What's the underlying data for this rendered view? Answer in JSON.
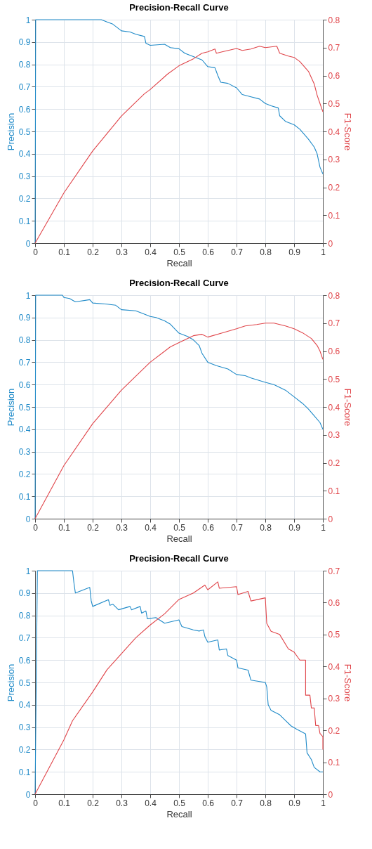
{
  "chart_data": [
    {
      "type": "line",
      "title": "Precision-Recall Curve",
      "xlabel": "Recall",
      "ylabel": "Precision",
      "y2label": "F1-Score",
      "grid": true,
      "xlim": [
        0,
        1
      ],
      "xticks": [
        0,
        0.1,
        0.2,
        0.3,
        0.4,
        0.5,
        0.6,
        0.7,
        0.8,
        0.9,
        1
      ],
      "ylim": [
        0,
        1
      ],
      "yticks": [
        0,
        0.1,
        0.2,
        0.3,
        0.4,
        0.5,
        0.6,
        0.7,
        0.8,
        0.9,
        1
      ],
      "y2lim": [
        0,
        0.8
      ],
      "y2ticks": [
        0,
        0.1,
        0.2,
        0.3,
        0.4,
        0.5,
        0.6,
        0.7,
        0.8
      ],
      "series": [
        {
          "color": "#1f8ac8",
          "axis": "y",
          "x": [
            0,
            0.002,
            0.23,
            0.25,
            0.27,
            0.3,
            0.33,
            0.35,
            0.38,
            0.385,
            0.4,
            0.45,
            0.47,
            0.5,
            0.52,
            0.55,
            0.58,
            0.6,
            0.625,
            0.635,
            0.645,
            0.67,
            0.7,
            0.72,
            0.75,
            0.78,
            0.8,
            0.82,
            0.845,
            0.85,
            0.87,
            0.9,
            0.92,
            0.95,
            0.97,
            0.98,
            0.99,
            1
          ],
          "values": [
            0,
            1,
            1,
            0.99,
            0.98,
            0.95,
            0.945,
            0.935,
            0.925,
            0.895,
            0.885,
            0.89,
            0.875,
            0.87,
            0.85,
            0.835,
            0.82,
            0.79,
            0.785,
            0.75,
            0.72,
            0.715,
            0.695,
            0.665,
            0.655,
            0.645,
            0.625,
            0.615,
            0.605,
            0.57,
            0.545,
            0.53,
            0.51,
            0.465,
            0.43,
            0.4,
            0.34,
            0.31
          ]
        },
        {
          "color": "#e0454a",
          "axis": "y2",
          "x": [
            0,
            0.1,
            0.2,
            0.3,
            0.38,
            0.4,
            0.46,
            0.5,
            0.55,
            0.58,
            0.6,
            0.625,
            0.63,
            0.65,
            0.7,
            0.72,
            0.75,
            0.78,
            0.8,
            0.84,
            0.85,
            0.88,
            0.9,
            0.92,
            0.95,
            0.97,
            0.98,
            0.99,
            1
          ],
          "values": [
            0,
            0.18,
            0.33,
            0.455,
            0.535,
            0.55,
            0.605,
            0.635,
            0.66,
            0.68,
            0.685,
            0.695,
            0.68,
            0.685,
            0.697,
            0.69,
            0.695,
            0.705,
            0.7,
            0.705,
            0.68,
            0.67,
            0.665,
            0.65,
            0.615,
            0.57,
            0.53,
            0.5,
            0.47
          ]
        }
      ]
    },
    {
      "type": "line",
      "title": "Precision-Recall Curve",
      "xlabel": "Recall",
      "ylabel": "Precision",
      "y2label": "F1-Score",
      "grid": true,
      "xlim": [
        0,
        1
      ],
      "xticks": [
        0,
        0.1,
        0.2,
        0.3,
        0.4,
        0.5,
        0.6,
        0.7,
        0.8,
        0.9,
        1
      ],
      "ylim": [
        0,
        1
      ],
      "yticks": [
        0,
        0.1,
        0.2,
        0.3,
        0.4,
        0.5,
        0.6,
        0.7,
        0.8,
        0.9,
        1
      ],
      "y2lim": [
        0,
        0.8
      ],
      "y2ticks": [
        0,
        0.1,
        0.2,
        0.3,
        0.4,
        0.5,
        0.6,
        0.7,
        0.8
      ],
      "series": [
        {
          "color": "#1f8ac8",
          "axis": "y",
          "x": [
            0,
            0.002,
            0.095,
            0.1,
            0.12,
            0.14,
            0.19,
            0.2,
            0.25,
            0.28,
            0.3,
            0.35,
            0.38,
            0.4,
            0.42,
            0.45,
            0.47,
            0.5,
            0.53,
            0.55,
            0.57,
            0.58,
            0.6,
            0.63,
            0.67,
            0.7,
            0.73,
            0.75,
            0.8,
            0.83,
            0.87,
            0.9,
            0.93,
            0.95,
            0.97,
            0.99,
            1
          ],
          "values": [
            0,
            1,
            1,
            0.99,
            0.985,
            0.97,
            0.98,
            0.965,
            0.96,
            0.955,
            0.935,
            0.93,
            0.915,
            0.905,
            0.9,
            0.885,
            0.87,
            0.83,
            0.815,
            0.8,
            0.775,
            0.74,
            0.7,
            0.685,
            0.67,
            0.645,
            0.64,
            0.63,
            0.61,
            0.6,
            0.575,
            0.545,
            0.515,
            0.49,
            0.46,
            0.43,
            0.4
          ]
        },
        {
          "color": "#e0454a",
          "axis": "y2",
          "x": [
            0,
            0.1,
            0.2,
            0.3,
            0.4,
            0.47,
            0.5,
            0.55,
            0.58,
            0.6,
            0.65,
            0.7,
            0.73,
            0.77,
            0.8,
            0.83,
            0.85,
            0.87,
            0.9,
            0.93,
            0.96,
            0.98,
            0.99,
            1
          ],
          "values": [
            0,
            0.19,
            0.34,
            0.46,
            0.56,
            0.615,
            0.63,
            0.655,
            0.66,
            0.65,
            0.665,
            0.68,
            0.69,
            0.695,
            0.7,
            0.7,
            0.695,
            0.69,
            0.68,
            0.665,
            0.645,
            0.62,
            0.6,
            0.57
          ]
        }
      ]
    },
    {
      "type": "line",
      "title": "Precision-Recall Curve",
      "xlabel": "Recall",
      "ylabel": "Precision",
      "y2label": "F1-Score",
      "grid": true,
      "xlim": [
        0,
        1
      ],
      "xticks": [
        0,
        0.1,
        0.2,
        0.3,
        0.4,
        0.5,
        0.6,
        0.7,
        0.8,
        0.9,
        1
      ],
      "ylim": [
        0,
        1
      ],
      "yticks": [
        0,
        0.1,
        0.2,
        0.3,
        0.4,
        0.5,
        0.6,
        0.7,
        0.8,
        0.9,
        1
      ],
      "y2lim": [
        0,
        0.7
      ],
      "y2ticks": [
        0,
        0.1,
        0.2,
        0.3,
        0.4,
        0.5,
        0.6,
        0.7
      ],
      "series": [
        {
          "color": "#1f8ac8",
          "axis": "y",
          "x": [
            0,
            0.008,
            0.13,
            0.135,
            0.14,
            0.19,
            0.195,
            0.2,
            0.255,
            0.26,
            0.27,
            0.29,
            0.33,
            0.335,
            0.365,
            0.37,
            0.385,
            0.39,
            0.42,
            0.45,
            0.5,
            0.51,
            0.55,
            0.57,
            0.585,
            0.59,
            0.6,
            0.635,
            0.64,
            0.665,
            0.67,
            0.7,
            0.705,
            0.74,
            0.75,
            0.8,
            0.805,
            0.81,
            0.82,
            0.85,
            0.87,
            0.89,
            0.91,
            0.94,
            0.945,
            0.96,
            0.97,
            0.99,
            1
          ],
          "values": [
            0,
            1,
            1,
            0.945,
            0.9,
            0.925,
            0.865,
            0.84,
            0.87,
            0.845,
            0.85,
            0.825,
            0.84,
            0.825,
            0.84,
            0.81,
            0.82,
            0.785,
            0.79,
            0.765,
            0.78,
            0.75,
            0.735,
            0.73,
            0.735,
            0.705,
            0.68,
            0.69,
            0.645,
            0.65,
            0.62,
            0.6,
            0.565,
            0.555,
            0.51,
            0.5,
            0.48,
            0.4,
            0.375,
            0.355,
            0.33,
            0.305,
            0.29,
            0.27,
            0.185,
            0.155,
            0.12,
            0.1,
            0.1
          ]
        },
        {
          "color": "#e0454a",
          "axis": "y2",
          "x": [
            0,
            0.1,
            0.13,
            0.2,
            0.25,
            0.3,
            0.35,
            0.4,
            0.45,
            0.5,
            0.55,
            0.59,
            0.6,
            0.635,
            0.64,
            0.7,
            0.705,
            0.74,
            0.75,
            0.8,
            0.805,
            0.82,
            0.85,
            0.88,
            0.9,
            0.92,
            0.94,
            0.94,
            0.955,
            0.96,
            0.97,
            0.975,
            0.985,
            0.99,
            1,
            1
          ],
          "values": [
            0,
            0.17,
            0.23,
            0.32,
            0.39,
            0.44,
            0.49,
            0.53,
            0.565,
            0.61,
            0.63,
            0.655,
            0.64,
            0.665,
            0.645,
            0.65,
            0.625,
            0.635,
            0.605,
            0.615,
            0.535,
            0.51,
            0.5,
            0.455,
            0.445,
            0.42,
            0.42,
            0.31,
            0.31,
            0.27,
            0.27,
            0.215,
            0.215,
            0.19,
            0.18,
            0.14
          ]
        }
      ]
    }
  ]
}
